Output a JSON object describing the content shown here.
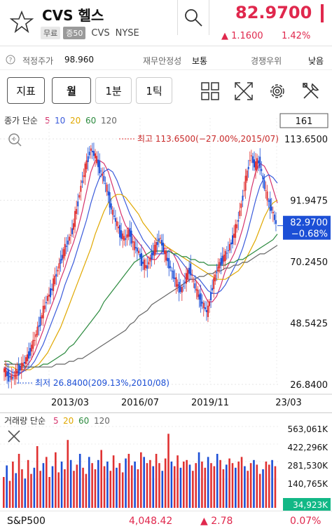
{
  "header": {
    "stock_name": "CVS 헬스",
    "tag_free": "무료",
    "tag_margin": "증50",
    "ticker": "CVS",
    "exchange": "NYSE",
    "price": "82.9700",
    "change": "▲ 1.1600",
    "change_pct": "1.42%",
    "accent_color": "#e0284d"
  },
  "info": {
    "fair_price_label": "적정주가",
    "fair_price_value": "98.960",
    "financial_label": "재무안정성",
    "financial_value": "보통",
    "competitive_label": "경쟁우위",
    "competitive_value": "낮음"
  },
  "toolbar": {
    "indicator_label": "지표",
    "period_month": "월",
    "period_1min": "1분",
    "period_1tick": "1틱"
  },
  "chart_data": {
    "type": "candlestick",
    "legend": {
      "prefix": "종가 단순",
      "ma": [
        {
          "name": "5",
          "color": "#d6336c"
        },
        {
          "name": "10",
          "color": "#3b5bdb"
        },
        {
          "name": "20",
          "color": "#e0a800"
        },
        {
          "name": "60",
          "color": "#2b8a3e"
        },
        {
          "name": "120",
          "color": "#666666"
        }
      ]
    },
    "count_box": "161",
    "y_ticks": [
      "113.6500",
      "91.9475",
      "70.2450",
      "48.5425",
      "26.8400"
    ],
    "x_ticks": [
      "2013/03",
      "2016/07",
      "2019/11",
      "23/03"
    ],
    "ylim": [
      26.84,
      113.65
    ],
    "high_label": "최고 113.6500(−27.00%,2015/07)",
    "low_label": "최저 26.8400(209.13%,2010/08)",
    "last_price_label": "82.9700",
    "last_change_label": "−0.68%",
    "close_path": [
      32,
      30,
      29,
      31,
      33,
      35,
      38,
      42,
      47,
      52,
      57,
      60,
      65,
      70,
      74,
      78,
      82,
      90,
      98,
      104,
      110,
      108,
      104,
      100,
      95,
      88,
      84,
      80,
      78,
      81,
      76,
      74,
      70,
      68,
      72,
      75,
      79,
      74,
      70,
      66,
      62,
      60,
      64,
      68,
      62,
      58,
      55,
      52,
      60,
      66,
      70,
      72,
      75,
      79,
      84,
      92,
      100,
      108,
      104,
      106,
      98,
      92,
      88,
      83
    ],
    "ma_paths": {
      "ma5": [
        32,
        31,
        30,
        30,
        31,
        33,
        35,
        38,
        42,
        46,
        51,
        55,
        59,
        64,
        68,
        73,
        77,
        82,
        88,
        95,
        102,
        106,
        106,
        105,
        102,
        97,
        92,
        87,
        83,
        81,
        79,
        77,
        75,
        72,
        71,
        71,
        73,
        75,
        75,
        73,
        70,
        66,
        64,
        64,
        64,
        62,
        59,
        56,
        56,
        58,
        62,
        67,
        70,
        73,
        77,
        82,
        88,
        96,
        102,
        105,
        104,
        101,
        96,
        91
      ],
      "ma10": [
        33,
        32,
        31,
        31,
        31,
        32,
        33,
        35,
        38,
        41,
        45,
        49,
        53,
        57,
        62,
        66,
        70,
        75,
        80,
        85,
        91,
        96,
        100,
        102,
        103,
        102,
        99,
        95,
        91,
        87,
        84,
        81,
        78,
        76,
        74,
        73,
        73,
        73,
        74,
        73,
        72,
        70,
        68,
        66,
        65,
        64,
        62,
        60,
        59,
        59,
        60,
        62,
        65,
        68,
        71,
        75,
        80,
        86,
        92,
        97,
        100,
        101,
        100,
        98
      ],
      "ma20": [
        34,
        33,
        33,
        32,
        32,
        32,
        32,
        33,
        34,
        36,
        38,
        41,
        44,
        47,
        51,
        55,
        59,
        63,
        67,
        71,
        75,
        80,
        84,
        88,
        91,
        93,
        94,
        94,
        93,
        91,
        89,
        87,
        84,
        82,
        80,
        78,
        77,
        76,
        75,
        74,
        73,
        72,
        71,
        70,
        69,
        68,
        67,
        66,
        65,
        64,
        64,
        64,
        65,
        66,
        67,
        69,
        72,
        75,
        78,
        82,
        86,
        89,
        91,
        92
      ],
      "ma60": [
        35,
        35,
        34,
        34,
        34,
        33,
        33,
        33,
        33,
        34,
        34,
        35,
        36,
        37,
        38,
        40,
        41,
        43,
        45,
        47,
        49,
        51,
        53,
        56,
        58,
        60,
        62,
        64,
        66,
        68,
        70,
        71,
        72,
        73,
        74,
        74,
        74,
        74,
        74,
        73,
        73,
        72,
        72,
        71,
        71,
        70,
        70,
        69,
        69,
        69,
        69,
        69,
        70,
        70,
        71,
        71,
        72,
        73,
        74,
        75,
        76,
        77,
        78,
        80
      ],
      "ma120": [
        34,
        34,
        34,
        34,
        33,
        33,
        33,
        33,
        33,
        33,
        33,
        33,
        34,
        34,
        34,
        35,
        35,
        36,
        36,
        37,
        38,
        39,
        40,
        41,
        42,
        43,
        44,
        45,
        46,
        48,
        49,
        51,
        52,
        53,
        55,
        56,
        57,
        58,
        59,
        60,
        61,
        62,
        63,
        64,
        64,
        65,
        65,
        66,
        66,
        67,
        67,
        68,
        68,
        69,
        69,
        70,
        70,
        71,
        72,
        73,
        73,
        74,
        75,
        76
      ]
    }
  },
  "volume": {
    "legend_prefix": "거래량 단순",
    "ma": [
      {
        "name": "5",
        "color": "#d6336c"
      },
      {
        "name": "20",
        "color": "#e0a800"
      },
      {
        "name": "60",
        "color": "#2b8a3e"
      },
      {
        "name": "120",
        "color": "#666666"
      }
    ],
    "y_ticks": [
      "563,061K",
      "422,296K",
      "281,530K",
      "140,765K"
    ],
    "last_label": "34,923K",
    "bars": [
      40,
      55,
      35,
      60,
      45,
      70,
      50,
      38,
      62,
      44,
      52,
      80,
      48,
      58,
      66,
      40,
      54,
      72,
      46,
      60,
      50,
      88,
      62,
      48,
      56,
      70,
      52,
      44,
      66,
      58,
      50,
      62,
      75,
      54,
      60,
      48,
      68,
      52,
      58,
      46,
      64,
      70,
      55,
      60,
      50,
      72,
      66,
      58,
      62,
      54,
      70,
      58,
      48,
      64,
      96,
      60,
      54,
      68,
      52,
      60,
      62,
      56,
      48,
      58,
      72,
      60,
      52,
      66,
      58,
      54,
      70,
      62,
      50,
      56,
      64,
      58,
      52,
      60,
      66,
      54,
      48,
      58,
      62,
      56,
      44,
      50,
      60,
      56,
      62,
      54
    ]
  },
  "footer": {
    "index_name": "S&P500",
    "index_value": "4,048.42",
    "index_change": "▲ 2.78",
    "index_pct": "0.07%"
  }
}
